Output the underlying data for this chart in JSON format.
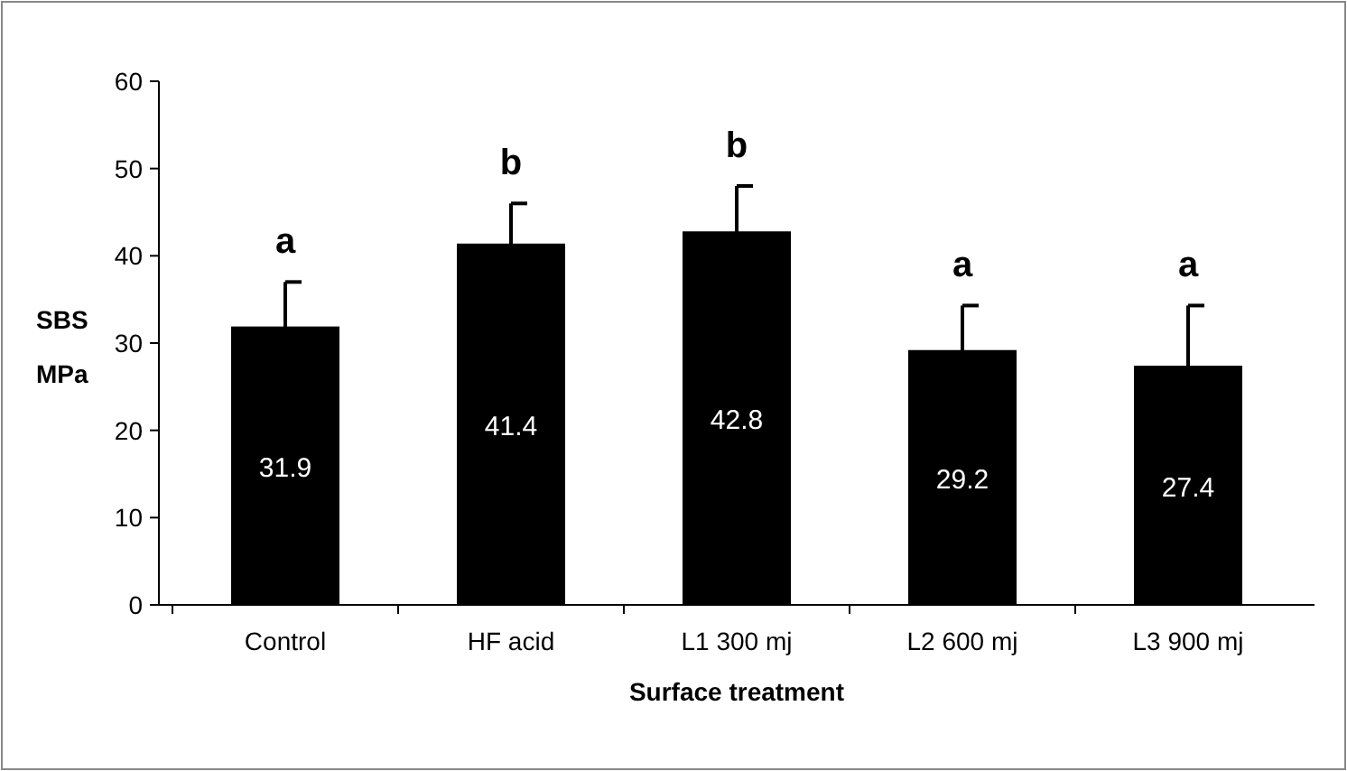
{
  "chart_data": {
    "type": "bar",
    "xlabel": "Surface treatment",
    "ylabel": "SBS MPa",
    "categories": [
      "Control",
      "HF acid",
      "L1 300 mj",
      "L2 600 mj",
      "L3 900 mj"
    ],
    "series": [
      {
        "color": "#000000",
        "values": [
          31.9,
          41.4,
          42.8,
          29.2,
          27.4
        ],
        "errors": [
          5.1,
          4.6,
          5.2,
          5.1,
          6.9
        ]
      }
    ],
    "ylim": [
      0,
      60
    ],
    "yticks": [
      0,
      10,
      20,
      30,
      40,
      50,
      60
    ],
    "data_labels": true,
    "grid": false,
    "annotations": [
      "a",
      "b",
      "b",
      "a",
      "a"
    ]
  }
}
